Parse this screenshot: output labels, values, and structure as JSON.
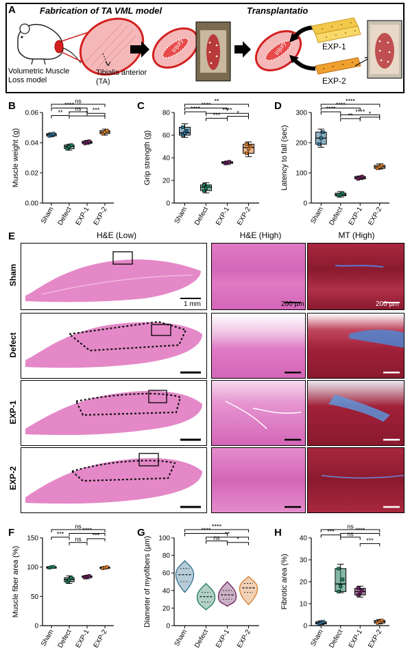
{
  "panel_a": {
    "letter": "A",
    "title_left": "Fabrication of TA VML model",
    "title_right": "Transplantatio",
    "label_vml": "Volumetric Muscle Loss model",
    "label_ta": "Tibialis anterior (TA)",
    "injury": "Injury",
    "exp1": "EXP-1",
    "exp2": "EXP-2"
  },
  "histology": {
    "letter": "E",
    "col_low": "H&E (Low)",
    "col_he_high": "H&E (High)",
    "col_mt_high": "MT (High)",
    "rows": [
      "Sham",
      "Defect",
      "EXP-1",
      "EXP-2"
    ],
    "scale_low": "1 mm",
    "scale_high": "200 µm",
    "scale_mt": "200 µm"
  },
  "chart_data": [
    {
      "id": "B",
      "type": "box",
      "ylabel": "Muscle weight (g)",
      "categories": [
        "Sham",
        "Defect",
        "EXP-1",
        "EXP-2"
      ],
      "ylim": [
        0,
        0.06
      ],
      "yticks": [
        "0.00",
        "0.02",
        "0.04",
        "0.06"
      ],
      "yticks_v": [
        0,
        0.02,
        0.04,
        0.06
      ],
      "colors": [
        "#2f6f8f",
        "#1f7a5a",
        "#6a1f5c",
        "#d67a2a"
      ],
      "series": [
        {
          "name": "Sham",
          "min": 0.044,
          "q1": 0.0445,
          "median": 0.0455,
          "q3": 0.046,
          "max": 0.0465,
          "points": [
            0.0445,
            0.0455,
            0.046
          ]
        },
        {
          "name": "Defect",
          "min": 0.035,
          "q1": 0.036,
          "median": 0.0375,
          "q3": 0.0385,
          "max": 0.039,
          "points": [
            0.036,
            0.0375,
            0.0385
          ]
        },
        {
          "name": "EXP-1",
          "min": 0.039,
          "q1": 0.0395,
          "median": 0.0402,
          "q3": 0.041,
          "max": 0.0415,
          "points": [
            0.0395,
            0.0402,
            0.041
          ]
        },
        {
          "name": "EXP-2",
          "min": 0.045,
          "q1": 0.046,
          "median": 0.047,
          "q3": 0.048,
          "max": 0.049,
          "points": [
            0.046,
            0.047,
            0.048
          ]
        }
      ],
      "brackets": [
        {
          "a": 0,
          "b": 3,
          "level": 4,
          "label": "ns"
        },
        {
          "a": 0,
          "b": 2,
          "level": 3,
          "label": "****"
        },
        {
          "a": 0,
          "b": 1,
          "level": 1,
          "label": "**"
        },
        {
          "a": 1,
          "b": 2,
          "level": 2,
          "label": "ns"
        },
        {
          "a": 1,
          "b": 3,
          "level": 0.9,
          "label": "*"
        },
        {
          "a": 2,
          "b": 3,
          "level": 1.6,
          "label": "***"
        }
      ]
    },
    {
      "id": "C",
      "type": "box",
      "ylabel": "Grip strength (g)",
      "categories": [
        "Sham",
        "Defect",
        "EXP-1",
        "EXP-2"
      ],
      "ylim": [
        0,
        80
      ],
      "yticks": [
        "0",
        "20",
        "40",
        "60",
        "80"
      ],
      "yticks_v": [
        0,
        20,
        40,
        60,
        80
      ],
      "colors": [
        "#2f6f8f",
        "#1f7a5a",
        "#6a1f5c",
        "#d67a2a"
      ],
      "series": [
        {
          "name": "Sham",
          "min": 58,
          "q1": 60,
          "median": 62,
          "q3": 67,
          "max": 70,
          "points": [
            60,
            62,
            64,
            67
          ]
        },
        {
          "name": "Defect",
          "min": 9,
          "q1": 11,
          "median": 14,
          "q3": 16,
          "max": 18,
          "points": [
            11,
            13,
            15,
            16
          ]
        },
        {
          "name": "EXP-1",
          "min": 34,
          "q1": 35,
          "median": 36,
          "q3": 36.5,
          "max": 37,
          "points": [
            35,
            36,
            36.5
          ]
        },
        {
          "name": "EXP-2",
          "min": 41,
          "q1": 44,
          "median": 49,
          "q3": 52,
          "max": 54,
          "points": [
            44,
            48,
            50,
            52
          ]
        }
      ],
      "brackets": [
        {
          "a": 0,
          "b": 3,
          "level": 4,
          "label": "**"
        },
        {
          "a": 0,
          "b": 2,
          "level": 3,
          "label": "****"
        },
        {
          "a": 0,
          "b": 1,
          "level": 2,
          "label": "****"
        },
        {
          "a": 1,
          "b": 3,
          "level": 1.6,
          "label": "****"
        },
        {
          "a": 2,
          "b": 3,
          "level": 0.8,
          "label": "*"
        },
        {
          "a": 1,
          "b": 2,
          "level": 0.3,
          "label": "***"
        }
      ]
    },
    {
      "id": "D",
      "type": "box",
      "ylabel": "Latency to fall (sec)",
      "categories": [
        "Sham",
        "Defect",
        "EXP-1",
        "EXP-2"
      ],
      "ylim": [
        0,
        300
      ],
      "yticks": [
        "0",
        "100",
        "200",
        "300"
      ],
      "yticks_v": [
        0,
        100,
        200,
        300
      ],
      "colors": [
        "#2f6f8f",
        "#1f7a5a",
        "#6a1f5c",
        "#d67a2a"
      ],
      "series": [
        {
          "name": "Sham",
          "min": 185,
          "q1": 195,
          "median": 215,
          "q3": 235,
          "max": 245,
          "points": [
            195,
            215,
            235
          ]
        },
        {
          "name": "Defect",
          "min": 20,
          "q1": 24,
          "median": 28,
          "q3": 33,
          "max": 38,
          "points": [
            24,
            28,
            33
          ]
        },
        {
          "name": "EXP-1",
          "min": 78,
          "q1": 80,
          "median": 84,
          "q3": 88,
          "max": 90,
          "points": [
            80,
            84,
            88
          ]
        },
        {
          "name": "EXP-2",
          "min": 112,
          "q1": 115,
          "median": 120,
          "q3": 125,
          "max": 130,
          "points": [
            115,
            120,
            125
          ]
        }
      ],
      "brackets": [
        {
          "a": 0,
          "b": 3,
          "level": 4,
          "label": "****"
        },
        {
          "a": 0,
          "b": 2,
          "level": 3,
          "label": "****"
        },
        {
          "a": 0,
          "b": 1,
          "level": 2,
          "label": "****"
        },
        {
          "a": 1,
          "b": 3,
          "level": 1.2,
          "label": "****"
        },
        {
          "a": 2,
          "b": 3,
          "level": 0.6,
          "label": "*"
        },
        {
          "a": 1,
          "b": 2,
          "level": 0.2,
          "label": "**"
        }
      ]
    },
    {
      "id": "F",
      "type": "box",
      "ylabel": "Muscle fiber area (%)",
      "categories": [
        "Sham",
        "Defect",
        "EXP-1",
        "EXP-2"
      ],
      "ylim": [
        0,
        150
      ],
      "yticks": [
        "0",
        "50",
        "100",
        "150"
      ],
      "yticks_v": [
        0,
        50,
        100,
        150
      ],
      "colors": [
        "#1f7a5a",
        "#1f7a5a",
        "#6a1f5c",
        "#d67a2a"
      ],
      "series": [
        {
          "name": "Sham",
          "min": 98,
          "q1": 99,
          "median": 100,
          "q3": 100.5,
          "max": 101,
          "points": [
            99,
            100,
            100.5
          ]
        },
        {
          "name": "Defect",
          "min": 72,
          "q1": 75,
          "median": 79,
          "q3": 82,
          "max": 85,
          "points": [
            75,
            78,
            82
          ]
        },
        {
          "name": "EXP-1",
          "min": 80,
          "q1": 82,
          "median": 84,
          "q3": 85,
          "max": 86,
          "points": [
            82,
            84,
            85
          ]
        },
        {
          "name": "EXP-2",
          "min": 97,
          "q1": 98,
          "median": 99,
          "q3": 100,
          "max": 101,
          "points": [
            98,
            99,
            100
          ]
        }
      ],
      "brackets": [
        {
          "a": 0,
          "b": 3,
          "level": 4,
          "label": "ns"
        },
        {
          "a": 1,
          "b": 3,
          "level": 3,
          "label": "****"
        },
        {
          "a": 0,
          "b": 1,
          "level": 2,
          "label": "***"
        },
        {
          "a": 2,
          "b": 3,
          "level": 1.6,
          "label": "***"
        },
        {
          "a": 1,
          "b": 2,
          "level": 0.6,
          "label": "ns"
        }
      ]
    },
    {
      "id": "G",
      "type": "violin",
      "ylabel": "Diameter of myofibers (µm)",
      "categories": [
        "Sham",
        "Defect",
        "EXP-1",
        "EXP-2"
      ],
      "ylim": [
        0,
        100
      ],
      "yticks": [
        "0",
        "20",
        "40",
        "60",
        "80",
        "100"
      ],
      "yticks_v": [
        0,
        20,
        40,
        60,
        80,
        100
      ],
      "colors": [
        "#2f6f8f",
        "#1f7a5a",
        "#6a1f5c",
        "#d67a2a"
      ],
      "series": [
        {
          "name": "Sham",
          "min": 38,
          "q1": 50,
          "median": 58,
          "q3": 65,
          "max": 74,
          "peak": 58
        },
        {
          "name": "Defect",
          "min": 18,
          "q1": 27,
          "median": 33,
          "q3": 38,
          "max": 48,
          "peak": 32
        },
        {
          "name": "EXP-1",
          "min": 22,
          "q1": 30,
          "median": 35,
          "q3": 40,
          "max": 50,
          "peak": 33
        },
        {
          "name": "EXP-2",
          "min": 24,
          "q1": 38,
          "median": 43,
          "q3": 48,
          "max": 56,
          "peak": 42
        }
      ],
      "brackets": [
        {
          "a": 0,
          "b": 3,
          "level": 4,
          "label": "****"
        },
        {
          "a": 0,
          "b": 2,
          "level": 3,
          "label": "****"
        },
        {
          "a": 1,
          "b": 3,
          "level": 2,
          "label": "**"
        },
        {
          "a": 1,
          "b": 2,
          "level": 1,
          "label": "ns"
        },
        {
          "a": 2,
          "b": 3,
          "level": 0.6,
          "label": "*"
        }
      ]
    },
    {
      "id": "H",
      "type": "box",
      "ylabel": "Fibrotic area (%)",
      "categories": [
        "Sham",
        "Defect",
        "EXP-1",
        "EXP-2"
      ],
      "ylim": [
        0,
        40
      ],
      "yticks": [
        "0",
        "10",
        "20",
        "30",
        "40"
      ],
      "yticks_v": [
        0,
        10,
        20,
        30,
        40
      ],
      "colors": [
        "#2f6f8f",
        "#1f7a5a",
        "#6a1f5c",
        "#d67a2a"
      ],
      "series": [
        {
          "name": "Sham",
          "min": 0.5,
          "q1": 0.8,
          "median": 1.2,
          "q3": 1.8,
          "max": 2.2,
          "points": [
            0.8,
            1.2,
            1.8
          ]
        },
        {
          "name": "Defect",
          "min": 15,
          "q1": 15.5,
          "median": 19,
          "q3": 26,
          "max": 28,
          "points": [
            15.5,
            18,
            21,
            26
          ]
        },
        {
          "name": "EXP-1",
          "min": 13,
          "q1": 14,
          "median": 15.5,
          "q3": 17,
          "max": 18,
          "points": [
            14,
            15,
            16,
            17
          ]
        },
        {
          "name": "EXP-2",
          "min": 0.8,
          "q1": 1.2,
          "median": 1.8,
          "q3": 2.4,
          "max": 2.8,
          "points": [
            1.2,
            1.8,
            2.4
          ]
        }
      ],
      "brackets": [
        {
          "a": 0,
          "b": 3,
          "level": 4,
          "label": "ns"
        },
        {
          "a": 1,
          "b": 3,
          "level": 3,
          "label": "****"
        },
        {
          "a": 0,
          "b": 1,
          "level": 2.6,
          "label": "***"
        },
        {
          "a": 1,
          "b": 2,
          "level": 2,
          "label": "ns"
        },
        {
          "a": 2,
          "b": 3,
          "level": 0.3,
          "label": "***"
        }
      ]
    }
  ]
}
